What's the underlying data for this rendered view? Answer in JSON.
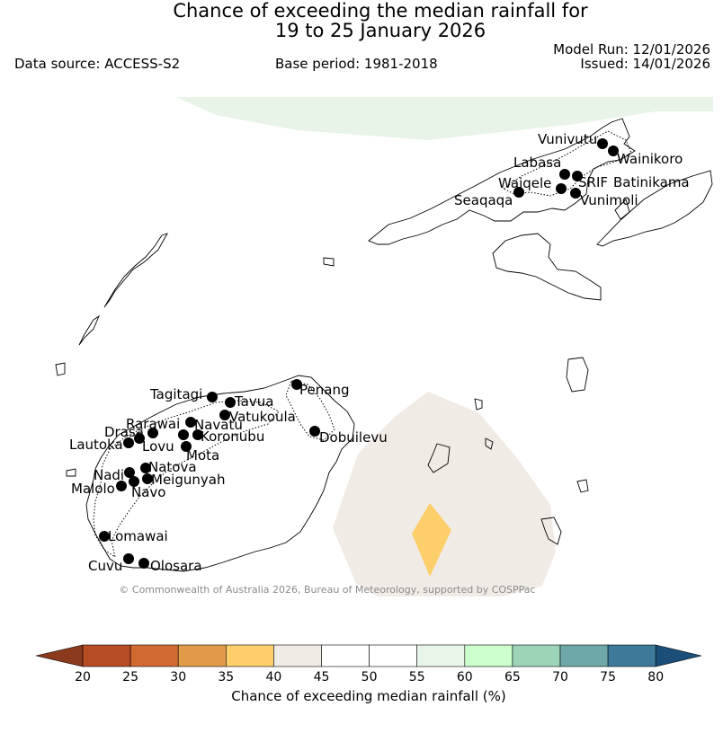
{
  "header": {
    "title_line1": "Chance of exceeding the median rainfall for",
    "title_line2": "19 to 25 January 2026",
    "model_run": "Model Run: 12/01/2026",
    "issued": "Issued: 14/01/2026",
    "data_source": "Data source: ACCESS-S2",
    "base_period": "Base period: 1981-2018"
  },
  "map": {
    "copyright": "© Commonwealth of Australia 2026, Bureau of Meteorology, supported by COSPPac",
    "stations": [
      "Vunivutu",
      "Wainikoro",
      "Labasa",
      "Waiqele",
      "SRIF",
      "Batinikama",
      "Seaqaqa",
      "Vunimoli",
      "Tagitagi",
      "Tavua",
      "Penang",
      "Vatukoula",
      "Rarawai",
      "Navatu",
      "Drasa",
      "Koronubu",
      "Lautoka",
      "Lovu",
      "Dobuilevu",
      "Mota",
      "Natova",
      "Nadi",
      "Meigunyah",
      "Malolo",
      "Navo",
      "Lomawai",
      "Cuvu",
      "Olosara"
    ]
  },
  "colorbar": {
    "label": "Chance of exceeding median rainfall (%)",
    "ticks": [
      "20",
      "25",
      "30",
      "35",
      "40",
      "45",
      "50",
      "55",
      "60",
      "65",
      "70",
      "75",
      "80"
    ],
    "colors": [
      "#8b3a1e",
      "#b84c24",
      "#d06a30",
      "#e19a4a",
      "#fccf6a",
      "#f0ebe5",
      "#ffffff",
      "#ffffff",
      "#e8f5e9",
      "#ccffcc",
      "#9dd4b8",
      "#6fa8a8",
      "#3d7a99",
      "#1b4f7a"
    ]
  }
}
